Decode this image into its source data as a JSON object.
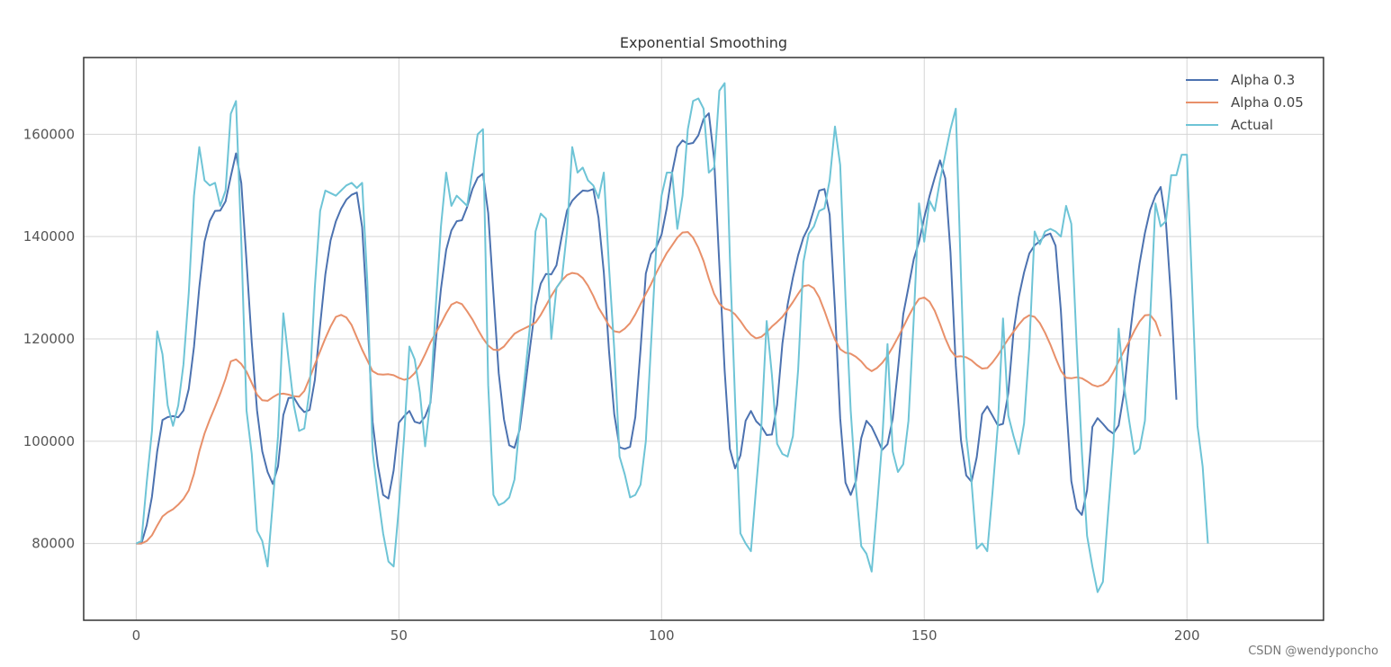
{
  "chart_data": {
    "type": "line",
    "title": "Exponential Smoothing",
    "xlabel": "",
    "ylabel": "",
    "xlim": [
      -10,
      226
    ],
    "ylim": [
      65000,
      175000
    ],
    "xticks": [
      0,
      50,
      100,
      150,
      200
    ],
    "xtick_labels": [
      "0",
      "50",
      "100",
      "150",
      "200"
    ],
    "yticks": [
      80000,
      100000,
      120000,
      140000,
      160000
    ],
    "ytick_labels": [
      "80000",
      "100000",
      "120000",
      "140000",
      "160000"
    ],
    "grid": true,
    "legend_position": "top-right",
    "series": [
      {
        "name": "Alpha 0.3",
        "color": "#4c72b0",
        "values": [
          80000,
          80000,
          83600,
          89180,
          97976,
          104156,
          104711,
          104910,
          104657,
          105998,
          110188,
          118442,
          130052,
          138991,
          143024,
          145021,
          145095,
          146879,
          151760,
          156270,
          150448,
          135152,
          119307,
          106003,
          98013,
          93995,
          91664,
          95106,
          105112,
          108458,
          108533,
          106844,
          105705,
          106112,
          111938,
          122656,
          132580,
          139240,
          142984,
          145434,
          147201,
          148166,
          148610,
          141826,
          124589,
          103812,
          95200,
          89500,
          88800,
          94300,
          103600,
          104900,
          105900,
          103800,
          103500,
          104800,
          107500,
          119400,
          129800,
          137400,
          141200,
          143000,
          143200,
          145800,
          149300,
          151500,
          152300,
          144600,
          128900,
          113300,
          104300,
          99200,
          98700,
          102300,
          110300,
          118600,
          126500,
          130800,
          132700,
          132600,
          134400,
          140000,
          145100,
          147000,
          148100,
          149000,
          148900,
          149300,
          143700,
          133000,
          117600,
          105300,
          98800,
          98500,
          98900,
          104700,
          117900,
          132800,
          136600,
          137900,
          140400,
          145600,
          152500,
          157500,
          158800,
          158100,
          158300,
          159800,
          163000,
          164100,
          155200,
          134500,
          113800,
          98500,
          94700,
          97200,
          104000,
          105900,
          103900,
          102900,
          101200,
          101300,
          107100,
          119100,
          126700,
          132000,
          136400,
          139800,
          141900,
          145300,
          149000,
          149300,
          144300,
          126000,
          104500,
          91900,
          89500,
          92200,
          100600,
          104000,
          102800,
          100600,
          98300,
          99400,
          104400,
          114000,
          124800,
          130100,
          135600,
          139000,
          143700,
          147900,
          151500,
          154900,
          151400,
          136900,
          114800,
          100100,
          93300,
          92100,
          96900,
          105300,
          106800,
          105000,
          103100,
          103400,
          109500,
          121500,
          128200,
          133000,
          136700,
          138300,
          139100,
          140200,
          140600,
          138200,
          125500,
          107600,
          92200,
          86800,
          85600,
          90400,
          102800,
          104500,
          103400,
          102200,
          101500,
          103100,
          109300,
          119500,
          127900,
          134800,
          140700,
          145200,
          148000,
          149700,
          143000,
          127500,
          108100
        ]
      },
      {
        "name": "Alpha 0.05",
        "color": "#e8906a",
        "values": [
          80000,
          80000,
          80500,
          81600,
          83500,
          85300,
          86100,
          86700,
          87600,
          88700,
          90400,
          93600,
          98000,
          101500,
          104200,
          106700,
          109300,
          112200,
          115600,
          116000,
          115100,
          113600,
          111400,
          109100,
          108000,
          107900,
          108600,
          109200,
          109300,
          109100,
          108800,
          108700,
          109800,
          112300,
          115000,
          117600,
          120100,
          122400,
          124300,
          124700,
          124200,
          122700,
          120300,
          117900,
          115800,
          113700,
          113100,
          113000,
          113100,
          112900,
          112400,
          112000,
          112300,
          113300,
          114900,
          117000,
          119300,
          121100,
          123000,
          125000,
          126700,
          127200,
          126800,
          125400,
          123800,
          121900,
          120100,
          118700,
          117900,
          117800,
          118500,
          119800,
          121000,
          121600,
          122100,
          122600,
          123200,
          124700,
          126500,
          128400,
          130000,
          131400,
          132500,
          132900,
          132700,
          131900,
          130400,
          128400,
          126100,
          124400,
          122600,
          121500,
          121300,
          122000,
          123100,
          124800,
          126800,
          128800,
          130700,
          132900,
          134900,
          136800,
          138300,
          139800,
          140800,
          140900,
          139800,
          137800,
          135200,
          131800,
          128800,
          126900,
          125900,
          125600,
          124800,
          123500,
          122000,
          120800,
          120100,
          120400,
          121300,
          122400,
          123300,
          124300,
          125700,
          127200,
          128800,
          130300,
          130500,
          129900,
          128100,
          125500,
          122600,
          119900,
          118000,
          117300,
          117100,
          116500,
          115600,
          114400,
          113700,
          114300,
          115300,
          116700,
          118400,
          120300,
          122300,
          124400,
          126300,
          127800,
          128100,
          127300,
          125500,
          122900,
          120100,
          117800,
          116500,
          116600,
          116400,
          115800,
          114900,
          114200,
          114300,
          115400,
          116800,
          118400,
          120000,
          121400,
          122800,
          124000,
          124600,
          124300,
          123100,
          121200,
          118900,
          116300,
          113800,
          112400,
          112300,
          112500,
          112300,
          111700,
          111000,
          110700,
          111000,
          111800,
          113500,
          115600,
          117600,
          119500,
          121600,
          123400,
          124600,
          124700,
          123400,
          120500
        ]
      },
      {
        "name": "Actual",
        "color": "#6ec4d6",
        "values": [
          80000,
          80500,
          92000,
          102000,
          121500,
          117000,
          107000,
          103000,
          107000,
          115000,
          129000,
          148000,
          157500,
          151000,
          150000,
          150500,
          146000,
          149000,
          164000,
          166500,
          139000,
          106000,
          97500,
          82500,
          80500,
          75500,
          88000,
          101000,
          125000,
          116000,
          107000,
          102000,
          102500,
          110000,
          130000,
          145000,
          149000,
          148500,
          148000,
          149000,
          150000,
          150500,
          149500,
          150500,
          131000,
          98000,
          89500,
          82000,
          76500,
          75500,
          87000,
          101000,
          118500,
          116000,
          109500,
          99000,
          108000,
          126000,
          142000,
          152500,
          146000,
          148000,
          147000,
          146000,
          153000,
          160000,
          161000,
          111000,
          89500,
          87500,
          88000,
          89000,
          92500,
          103500,
          113000,
          123000,
          141000,
          144500,
          143500,
          120000,
          130000,
          131500,
          141000,
          157500,
          152500,
          153500,
          151000,
          150000,
          147500,
          152500,
          134000,
          118000,
          97000,
          93500,
          89000,
          89500,
          91500,
          100000,
          119000,
          138000,
          148000,
          152500,
          152500,
          141500,
          148000,
          161000,
          166500,
          167000,
          165000,
          152500,
          153500,
          168500,
          170000,
          136000,
          108000,
          82000,
          80000,
          78500,
          91000,
          103000,
          123500,
          113000,
          99500,
          97500,
          97000,
          101000,
          114000,
          135000,
          140500,
          142000,
          145000,
          145500,
          151000,
          161500,
          154000,
          128000,
          106000,
          91000,
          79500,
          78000,
          74500,
          87000,
          100000,
          119000,
          98000,
          94000,
          95500,
          104000,
          124000,
          146500,
          139000,
          147000,
          145000,
          151000,
          156000,
          161000,
          165000,
          132000,
          101000,
          92000,
          79000,
          80000,
          78500,
          90000,
          103000,
          124000,
          105000,
          101000,
          97500,
          103500,
          118500,
          141000,
          138500,
          141000,
          141500,
          141000,
          140000,
          146000,
          142500,
          119000,
          98000,
          81500,
          75500,
          70500,
          72500,
          86000,
          99000,
          122000,
          111000,
          104000,
          97500,
          98500,
          104000,
          124000,
          146500,
          142000,
          143000,
          152000,
          152000,
          156000,
          156000,
          130000,
          103000,
          95000,
          80000
        ]
      }
    ]
  },
  "watermark": "CSDN @wendyponcho"
}
